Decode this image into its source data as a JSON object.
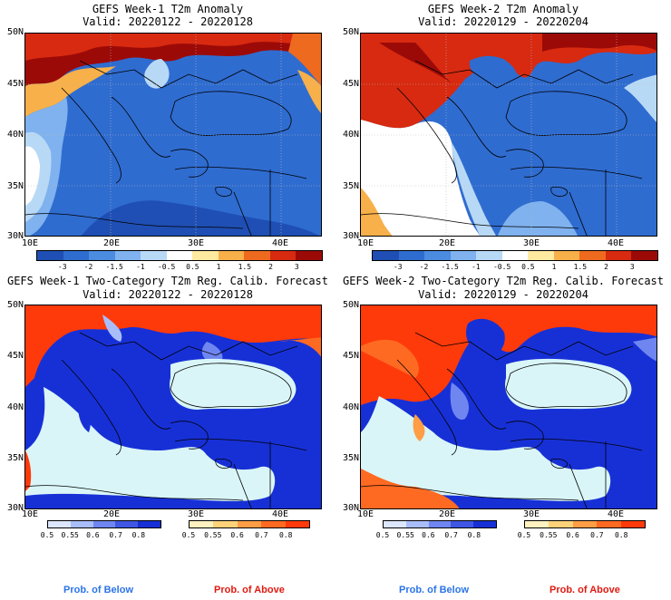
{
  "panels": [
    {
      "title": "GEFS Week-1 T2m Anomaly",
      "valid": "Valid: 20220122 - 20220128"
    },
    {
      "title": "GEFS Week-2 T2m Anomaly",
      "valid": "Valid: 20220129 - 20220204"
    },
    {
      "title": "GEFS Week-1 Two-Category T2m Reg. Calib. Forecast",
      "valid": "Valid: 20220122 - 20220128"
    },
    {
      "title": "GEFS Week-2 Two-Category T2m Reg. Calib. Forecast",
      "valid": "Valid: 20220129 - 20220204"
    }
  ],
  "lat_labels": [
    "50N",
    "45N",
    "40N",
    "35N",
    "30N"
  ],
  "lon_labels": [
    "10E",
    "20E",
    "30E",
    "40E"
  ],
  "anomaly_colorbar": {
    "labels": [
      "-3",
      "-2",
      "-1.5",
      "-1",
      "-0.5",
      "0.5",
      "1",
      "1.5",
      "2",
      "3"
    ],
    "colors": [
      "#1f4fb4",
      "#2f6cd0",
      "#4b8be0",
      "#7fb2ee",
      "#b8d9f6",
      "#ffffff",
      "#ffeaa0",
      "#f7b04a",
      "#ee6a1e",
      "#d72a10",
      "#9c0a08"
    ]
  },
  "prob_colorbars": {
    "below_labels": [
      "0.5",
      "0.55",
      "0.6",
      "0.7",
      "0.8"
    ],
    "below_colors": [
      "#dce6ff",
      "#a9bdfb",
      "#6f86f0",
      "#3f57e2",
      "#1730d6"
    ],
    "above_labels": [
      "0.5",
      "0.55",
      "0.6",
      "0.7",
      "0.8"
    ],
    "above_colors": [
      "#fff2c0",
      "#ffd27a",
      "#ff9e45",
      "#ff6a22",
      "#ff3a0a"
    ]
  },
  "footer": {
    "below": "Prob. of Below",
    "above": "Prob. of Above",
    "below_color": "#2b74e8",
    "above_color": "#e01a10"
  }
}
